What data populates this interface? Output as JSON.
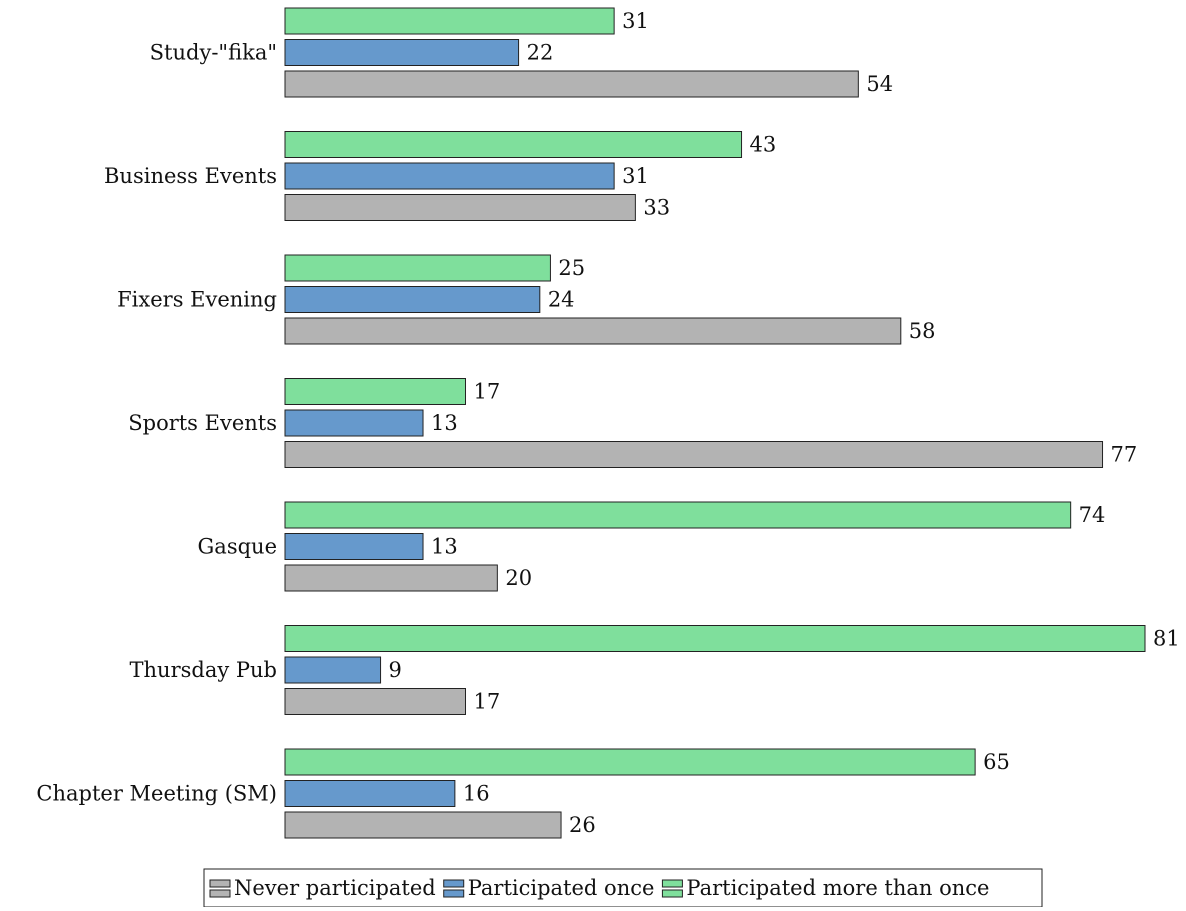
{
  "chart_data": {
    "type": "bar",
    "orientation": "horizontal",
    "categories": [
      "Study-\"fika\"",
      "Business Events",
      "Fixers Evening",
      "Sports Events",
      "Gasque",
      "Thursday Pub",
      "Chapter Meeting (SM)"
    ],
    "series": [
      {
        "name": "Participated more than once",
        "color": "#7fdf9c",
        "values": [
          31,
          43,
          25,
          17,
          74,
          81,
          65
        ]
      },
      {
        "name": "Participated once",
        "color": "#6699cc",
        "values": [
          22,
          31,
          24,
          13,
          13,
          9,
          16
        ]
      },
      {
        "name": "Never participated",
        "color": "#b3b3b3",
        "values": [
          54,
          33,
          58,
          77,
          20,
          17,
          26
        ]
      }
    ],
    "legend_order": [
      "Never participated",
      "Participated once",
      "Participated more than once"
    ],
    "legend_position": "bottom",
    "xlim": [
      0,
      81
    ],
    "grid": false
  }
}
